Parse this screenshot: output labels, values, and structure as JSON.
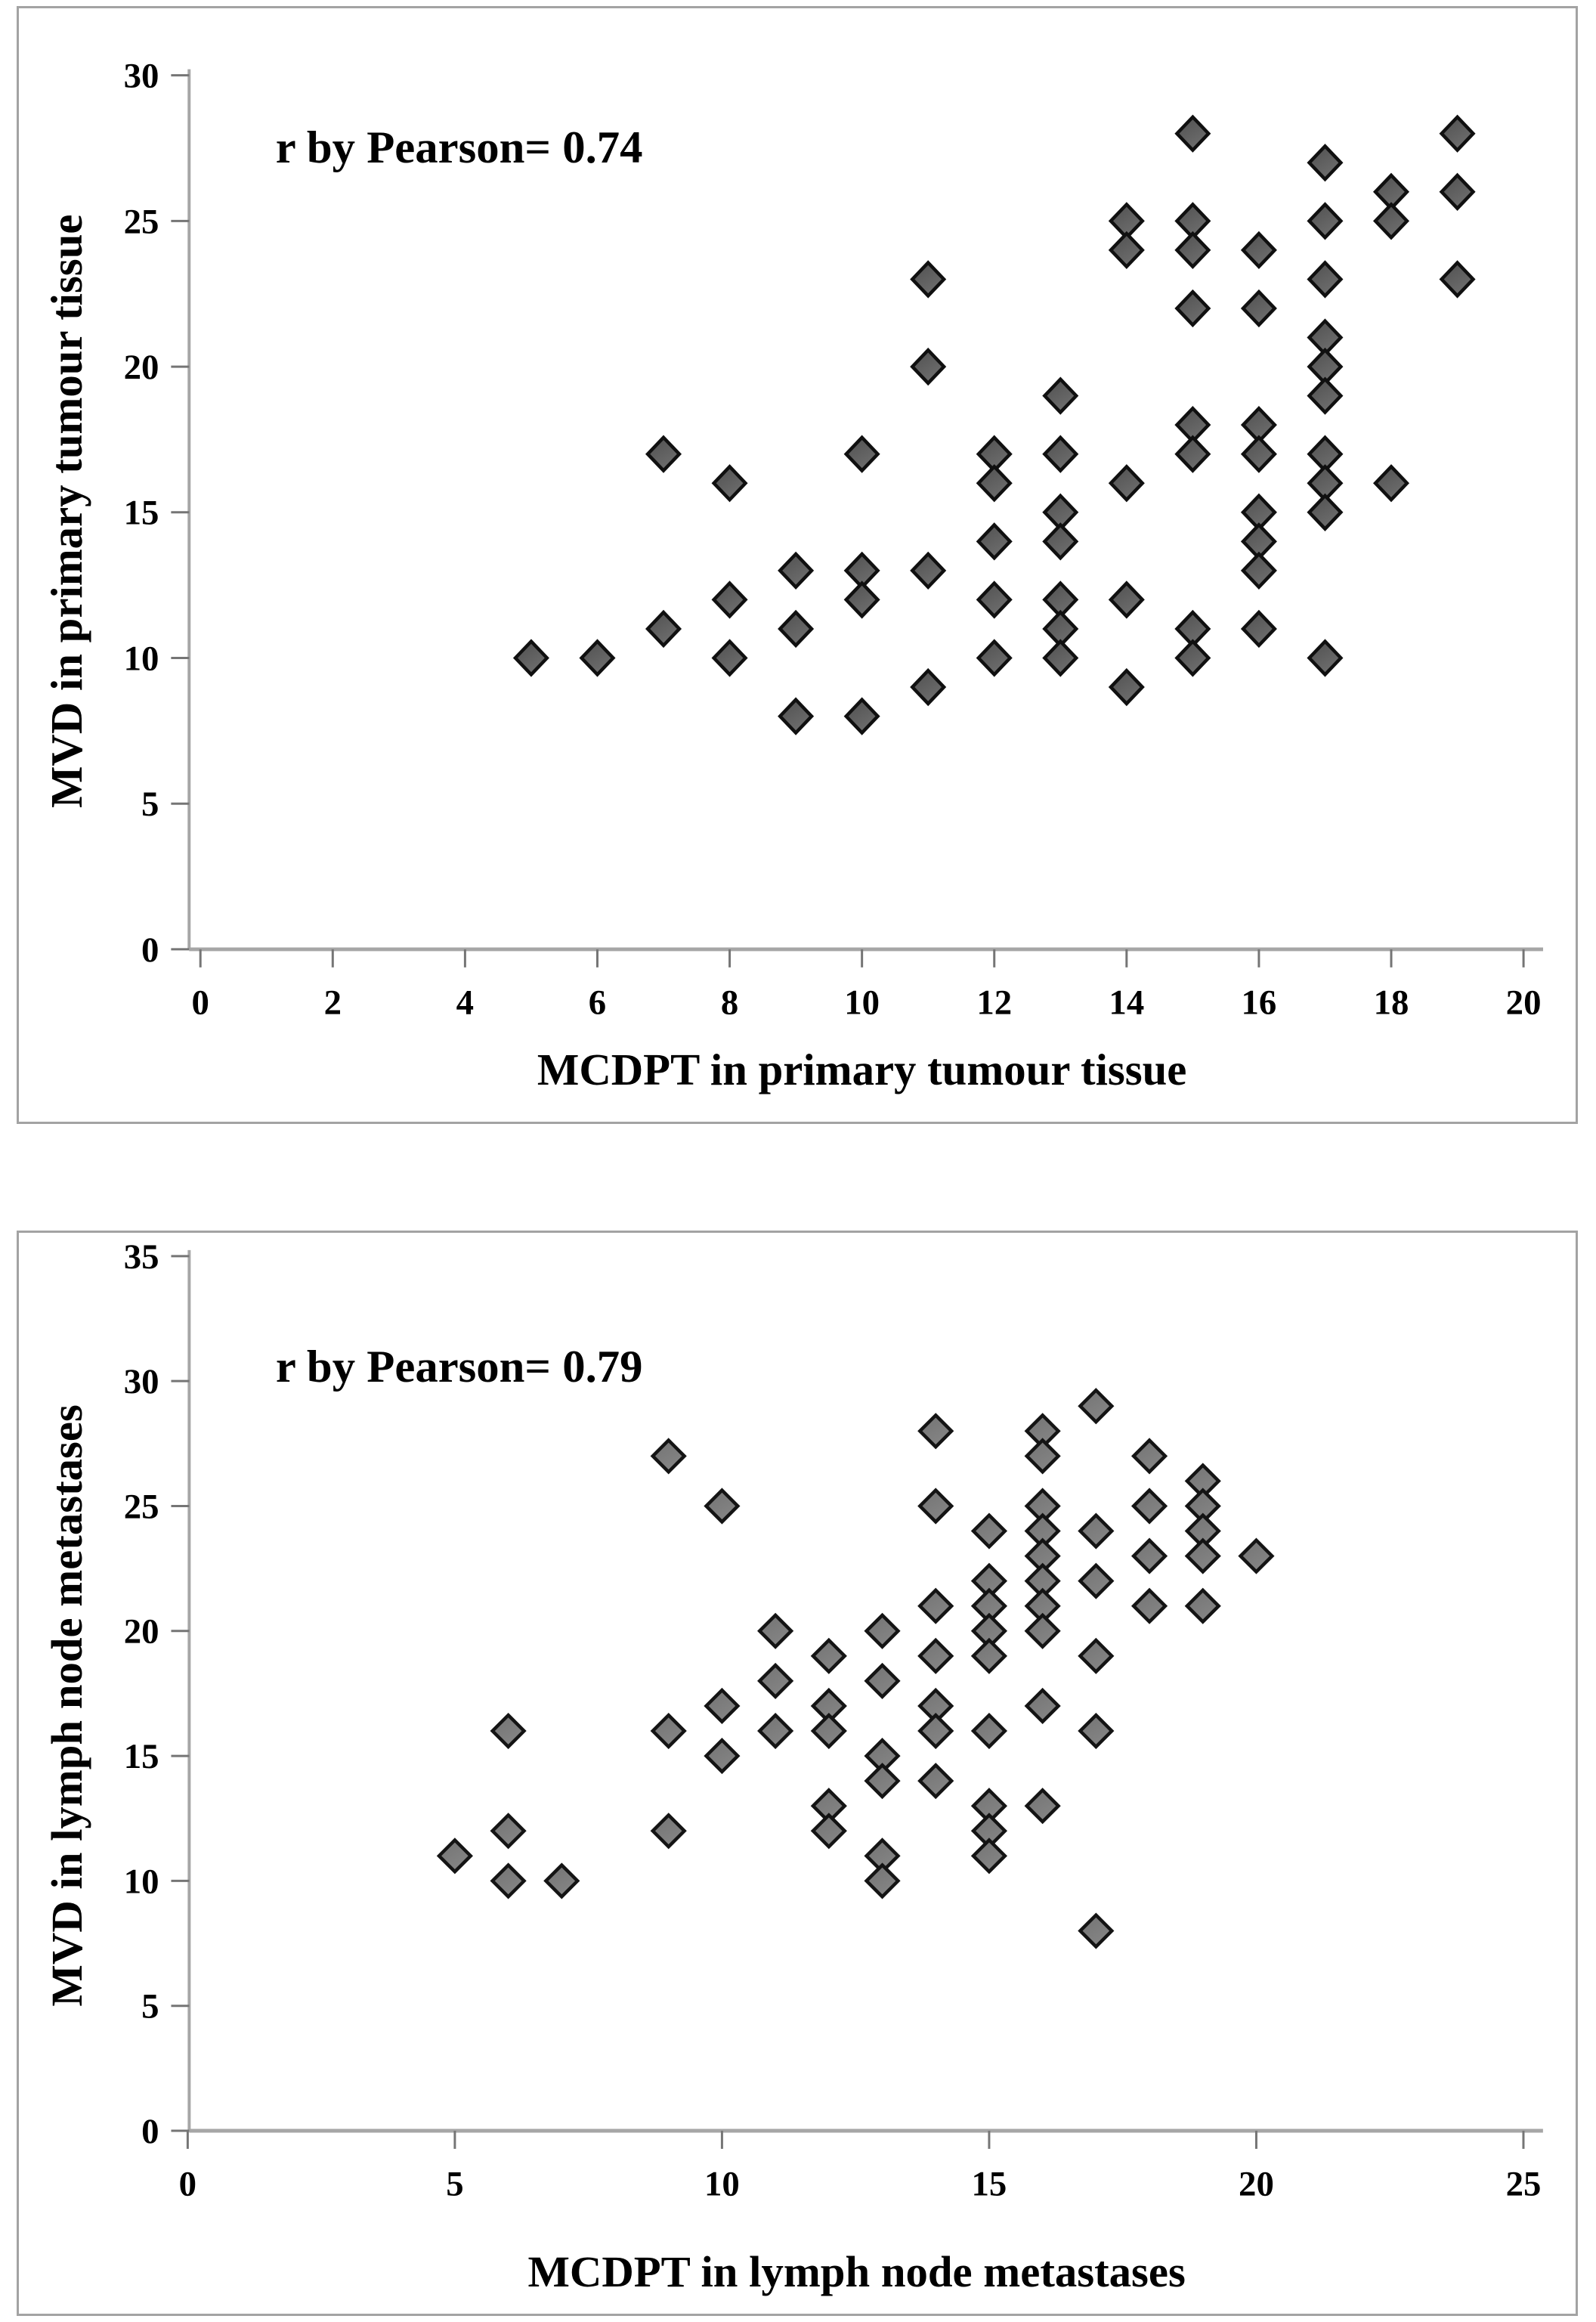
{
  "colors": {
    "background": "#ffffff",
    "figure_border": "#a3a3a3",
    "axis_line": "#a6a6a6",
    "tick_mark": "#757575",
    "text": "#000000"
  },
  "chart_data": [
    {
      "type": "scatter",
      "annotation": "r by Pearson= 0.74",
      "xlabel": "MCDPT in primary tumour tissue",
      "ylabel": "MVD in primary tumour tissue",
      "xlim": [
        0,
        20
      ],
      "ylim": [
        0,
        30
      ],
      "xticks": [
        0,
        2,
        4,
        6,
        8,
        10,
        12,
        14,
        16,
        18,
        20
      ],
      "yticks": [
        0,
        5,
        10,
        15,
        20,
        25,
        30
      ],
      "grid": false,
      "legend": "none",
      "marker": {
        "shape": "diamond",
        "fill": "#4f4f4f",
        "fill2": "#6e6e6e",
        "stroke": "#101010"
      },
      "points": [
        [
          5,
          10
        ],
        [
          6,
          10
        ],
        [
          7,
          17
        ],
        [
          7,
          11
        ],
        [
          8,
          16
        ],
        [
          8,
          12
        ],
        [
          8,
          10
        ],
        [
          9,
          13
        ],
        [
          9,
          11
        ],
        [
          9,
          8
        ],
        [
          10,
          17
        ],
        [
          10,
          13
        ],
        [
          10,
          12
        ],
        [
          10,
          8
        ],
        [
          11,
          23
        ],
        [
          11,
          20
        ],
        [
          11,
          13
        ],
        [
          11,
          9
        ],
        [
          12,
          17
        ],
        [
          12,
          16
        ],
        [
          12,
          14
        ],
        [
          12,
          12
        ],
        [
          12,
          10
        ],
        [
          13,
          19
        ],
        [
          13,
          17
        ],
        [
          13,
          15
        ],
        [
          13,
          14
        ],
        [
          13,
          12
        ],
        [
          13,
          11
        ],
        [
          13,
          10
        ],
        [
          14,
          25
        ],
        [
          14,
          24
        ],
        [
          14,
          16
        ],
        [
          14,
          12
        ],
        [
          14,
          9
        ],
        [
          15,
          28
        ],
        [
          15,
          25
        ],
        [
          15,
          24
        ],
        [
          15,
          22
        ],
        [
          15,
          18
        ],
        [
          15,
          17
        ],
        [
          15,
          11
        ],
        [
          15,
          10
        ],
        [
          16,
          24
        ],
        [
          16,
          22
        ],
        [
          16,
          18
        ],
        [
          16,
          17
        ],
        [
          16,
          15
        ],
        [
          16,
          14
        ],
        [
          16,
          13
        ],
        [
          16,
          11
        ],
        [
          17,
          27
        ],
        [
          17,
          25
        ],
        [
          17,
          23
        ],
        [
          17,
          21
        ],
        [
          17,
          20
        ],
        [
          17,
          19
        ],
        [
          17,
          17
        ],
        [
          17,
          16
        ],
        [
          17,
          15
        ],
        [
          17,
          10
        ],
        [
          18,
          26
        ],
        [
          18,
          25
        ],
        [
          18,
          16
        ],
        [
          19,
          28
        ],
        [
          19,
          26
        ],
        [
          19,
          23
        ]
      ]
    },
    {
      "type": "scatter",
      "annotation": "r by Pearson= 0.79",
      "xlabel": "MCDPT in lymph node metastases",
      "ylabel": "MVD in lymph node metastases",
      "xlim": [
        0,
        25
      ],
      "ylim": [
        0,
        35
      ],
      "xticks": [
        0,
        5,
        10,
        15,
        20,
        25
      ],
      "yticks": [
        0,
        5,
        10,
        15,
        20,
        25,
        30,
        35
      ],
      "grid": false,
      "legend": "none",
      "marker": {
        "shape": "diamond",
        "fill": "#737373",
        "fill2": "#858585",
        "stroke": "#141414"
      },
      "points": [
        [
          5,
          11
        ],
        [
          6,
          16
        ],
        [
          6,
          12
        ],
        [
          6,
          10
        ],
        [
          7,
          10
        ],
        [
          9,
          27
        ],
        [
          9,
          16
        ],
        [
          9,
          12
        ],
        [
          10,
          25
        ],
        [
          10,
          17
        ],
        [
          10,
          15
        ],
        [
          11,
          20
        ],
        [
          11,
          18
        ],
        [
          11,
          16
        ],
        [
          12,
          19
        ],
        [
          12,
          17
        ],
        [
          12,
          16
        ],
        [
          12,
          13
        ],
        [
          12,
          12
        ],
        [
          13,
          20
        ],
        [
          13,
          18
        ],
        [
          13,
          15
        ],
        [
          13,
          14
        ],
        [
          13,
          11
        ],
        [
          13,
          10
        ],
        [
          14,
          28
        ],
        [
          14,
          25
        ],
        [
          14,
          21
        ],
        [
          14,
          19
        ],
        [
          14,
          17
        ],
        [
          14,
          16
        ],
        [
          14,
          14
        ],
        [
          15,
          24
        ],
        [
          15,
          22
        ],
        [
          15,
          21
        ],
        [
          15,
          20
        ],
        [
          15,
          19
        ],
        [
          15,
          16
        ],
        [
          15,
          13
        ],
        [
          15,
          12
        ],
        [
          15,
          11
        ],
        [
          16,
          28
        ],
        [
          16,
          27
        ],
        [
          16,
          25
        ],
        [
          16,
          24
        ],
        [
          16,
          23
        ],
        [
          16,
          22
        ],
        [
          16,
          21
        ],
        [
          16,
          20
        ],
        [
          16,
          17
        ],
        [
          16,
          13
        ],
        [
          17,
          29
        ],
        [
          17,
          24
        ],
        [
          17,
          22
        ],
        [
          17,
          19
        ],
        [
          17,
          16
        ],
        [
          17,
          8
        ],
        [
          18,
          27
        ],
        [
          18,
          25
        ],
        [
          18,
          23
        ],
        [
          18,
          21
        ],
        [
          19,
          26
        ],
        [
          19,
          25
        ],
        [
          19,
          24
        ],
        [
          19,
          23
        ],
        [
          19,
          21
        ],
        [
          20,
          23
        ]
      ]
    }
  ]
}
